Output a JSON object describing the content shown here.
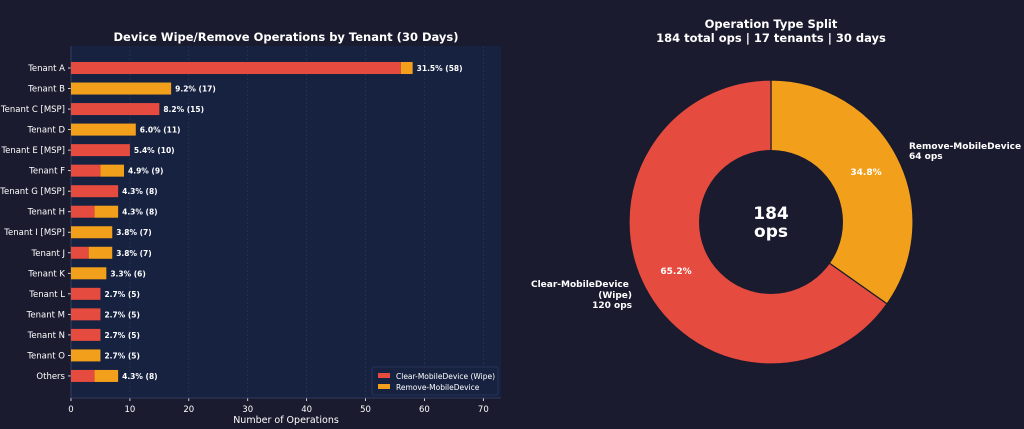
{
  "colors": {
    "figure_bg": "#1a1b2e",
    "plot_bg": "#172241",
    "wipe": "#e54b3e",
    "remove": "#f2a01b",
    "text": "#ffffff",
    "grid": "#2b3a5e"
  },
  "chart_data": [
    {
      "type": "bar",
      "orientation": "horizontal",
      "stacked": true,
      "title": "Device Wipe/Remove Operations by Tenant (30 Days)",
      "xlabel": "Number of Operations",
      "ylabel": "",
      "xlim": [
        0,
        73
      ],
      "xticks": [
        0,
        10,
        20,
        30,
        40,
        50,
        60,
        70
      ],
      "grid": true,
      "legend_position": "bottom-right",
      "categories": [
        "Tenant A",
        "Tenant B",
        "Tenant C [MSP]",
        "Tenant D",
        "Tenant E [MSP]",
        "Tenant F",
        "Tenant G [MSP]",
        "Tenant H",
        "Tenant I [MSP]",
        "Tenant J",
        "Tenant K",
        "Tenant L",
        "Tenant M",
        "Tenant N",
        "Tenant O",
        "Others"
      ],
      "series": [
        {
          "name": "Clear-MobileDevice (Wipe)",
          "values": [
            56,
            0,
            15,
            0,
            10,
            5,
            8,
            4,
            0,
            3,
            0,
            5,
            5,
            5,
            0,
            4
          ]
        },
        {
          "name": "Remove-MobileDevice",
          "values": [
            2,
            17,
            0,
            11,
            0,
            4,
            0,
            4,
            7,
            4,
            6,
            0,
            0,
            0,
            5,
            4
          ]
        }
      ],
      "data_labels": [
        "31.5% (58)",
        "9.2% (17)",
        "8.2% (15)",
        "6.0% (11)",
        "5.4% (10)",
        "4.9% (9)",
        "4.3% (8)",
        "4.3% (8)",
        "3.8% (7)",
        "3.8% (7)",
        "3.3% (6)",
        "2.7% (5)",
        "2.7% (5)",
        "2.7% (5)",
        "2.7% (5)",
        "4.3% (8)"
      ]
    },
    {
      "type": "pie",
      "donut": true,
      "title": "Operation Type Split",
      "subtitle": "184 total ops | 17 tenants | 30 days",
      "center_value": "184",
      "center_unit": "ops",
      "slices": [
        {
          "value": 120,
          "percent_label": "65.2%",
          "name": "Clear-MobileDevice\n(Wipe)",
          "detail": "120 ops",
          "color": "#e54b3e"
        },
        {
          "value": 64,
          "percent_label": "34.8%",
          "name": "Remove-MobileDevice",
          "detail": "64 ops",
          "color": "#f2a01b"
        }
      ]
    }
  ]
}
